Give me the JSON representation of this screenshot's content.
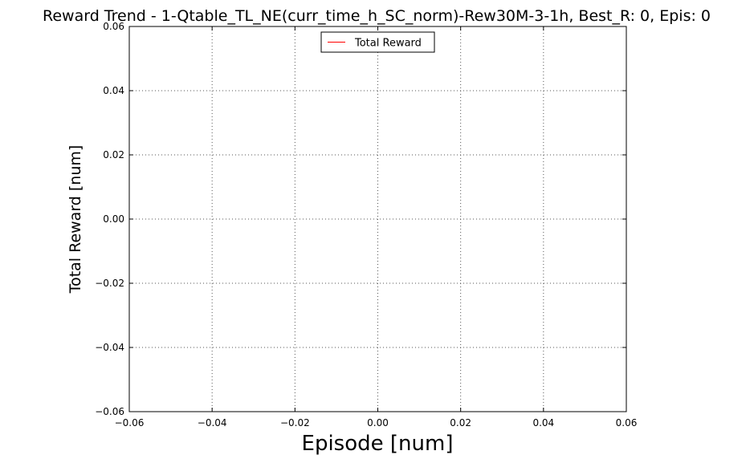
{
  "chart_data": {
    "type": "line",
    "title": "Reward Trend - 1-Qtable_TL_NE(curr_time_h_SC_norm)-Rew30M-3-1h, Best_R: 0, Epis: 0",
    "xlabel": "Episode [num]",
    "ylabel": "Total Reward [num]",
    "xlim": [
      -0.06,
      0.06
    ],
    "ylim": [
      -0.06,
      0.06
    ],
    "xticks": [
      -0.06,
      -0.04,
      -0.02,
      0.0,
      0.02,
      0.04,
      0.06
    ],
    "xtick_labels": [
      "−0.06",
      "−0.04",
      "−0.02",
      "0.00",
      "0.02",
      "0.04",
      "0.06"
    ],
    "yticks": [
      0.06,
      0.04,
      0.02,
      0.0,
      -0.02,
      -0.04,
      -0.06
    ],
    "ytick_labels": [
      "0.06",
      "0.04",
      "0.02",
      "0.00",
      "−0.02",
      "−0.04",
      "−0.06"
    ],
    "grid": true,
    "legend_position": "top-center",
    "series": [
      {
        "name": "Total Reward",
        "color": "#ff0000",
        "x": [],
        "y": []
      }
    ]
  }
}
